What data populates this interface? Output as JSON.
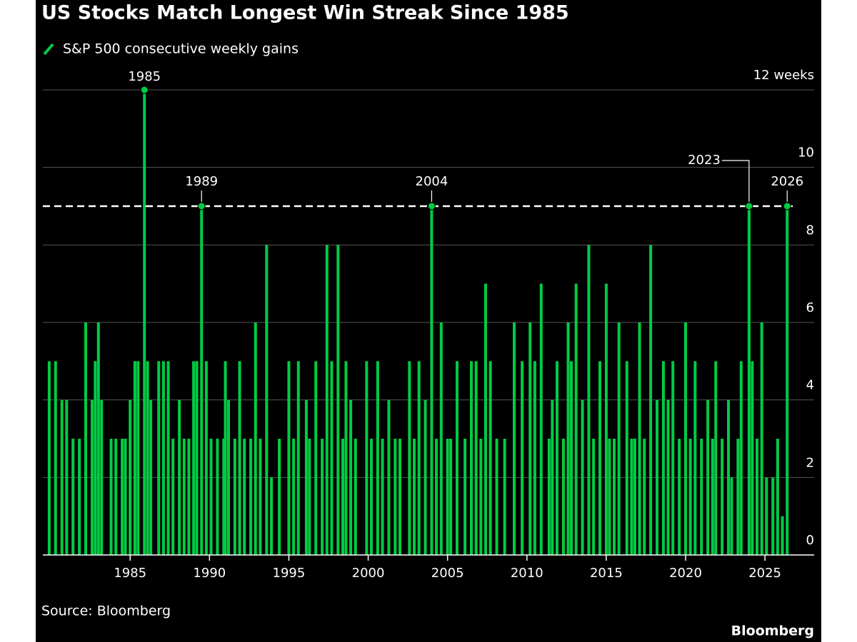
{
  "chart_data": {
    "type": "bar",
    "title": "US Stocks Match Longest Win Streak Since 1985",
    "source": "Source: Bloomberg",
    "brand": "Bloomberg",
    "series": [
      {
        "name": "S&P 500 consecutive weekly gains",
        "color": "#00cc44",
        "x": [
          1979.9,
          1980.3,
          1980.7,
          1981.0,
          1981.4,
          1981.8,
          1982.2,
          1982.6,
          1982.8,
          1983.0,
          1983.2,
          1983.8,
          1984.1,
          1984.5,
          1984.7,
          1985.0,
          1985.3,
          1985.5,
          1985.9,
          1986.1,
          1986.3,
          1986.8,
          1987.1,
          1987.4,
          1987.7,
          1988.1,
          1988.4,
          1988.7,
          1989.0,
          1989.2,
          1989.5,
          1989.8,
          1990.1,
          1990.5,
          1990.9,
          1991.0,
          1991.2,
          1991.6,
          1991.9,
          1992.2,
          1992.6,
          1992.9,
          1993.2,
          1993.6,
          1993.9,
          1994.4,
          1995.0,
          1995.3,
          1995.6,
          1996.1,
          1996.3,
          1996.7,
          1997.1,
          1997.4,
          1997.7,
          1998.1,
          1998.4,
          1998.6,
          1998.9,
          1999.2,
          1999.9,
          2000.2,
          2000.6,
          2000.9,
          2001.3,
          2001.7,
          2002.0,
          2002.6,
          2002.9,
          2003.2,
          2003.6,
          2004.0,
          2004.3,
          2004.6,
          2005.0,
          2005.2,
          2005.6,
          2006.1,
          2006.5,
          2006.8,
          2007.1,
          2007.4,
          2007.7,
          2008.1,
          2008.6,
          2009.2,
          2009.7,
          2010.2,
          2010.5,
          2010.9,
          2011.4,
          2011.6,
          2011.9,
          2012.3,
          2012.6,
          2012.8,
          2013.1,
          2013.5,
          2013.9,
          2014.2,
          2014.6,
          2015.0,
          2015.2,
          2015.5,
          2015.8,
          2016.3,
          2016.6,
          2016.8,
          2017.1,
          2017.4,
          2017.8,
          2018.2,
          2018.6,
          2018.9,
          2019.2,
          2019.6,
          2020.0,
          2020.3,
          2020.6,
          2021.0,
          2021.4,
          2021.7,
          2021.9,
          2022.3,
          2022.7,
          2022.9,
          2023.3,
          2023.5,
          2024.0,
          2024.2,
          2024.5,
          2024.8,
          2025.1,
          2025.5,
          2025.8,
          2026.1,
          2026.4
        ],
        "values": [
          5,
          5,
          4,
          4,
          3,
          3,
          6,
          4,
          5,
          6,
          4,
          3,
          3,
          3,
          3,
          4,
          5,
          5,
          12,
          5,
          4,
          5,
          5,
          5,
          3,
          4,
          3,
          3,
          5,
          5,
          9,
          5,
          3,
          3,
          3,
          5,
          4,
          3,
          5,
          3,
          3,
          6,
          3,
          8,
          2,
          3,
          5,
          3,
          5,
          4,
          3,
          5,
          3,
          8,
          5,
          8,
          3,
          5,
          4,
          3,
          5,
          3,
          5,
          3,
          4,
          3,
          3,
          5,
          3,
          5,
          4,
          9,
          3,
          6,
          3,
          3,
          5,
          3,
          5,
          5,
          3,
          7,
          5,
          3,
          3,
          6,
          5,
          6,
          5,
          7,
          3,
          4,
          5,
          3,
          6,
          5,
          7,
          4,
          8,
          3,
          5,
          7,
          3,
          3,
          6,
          5,
          3,
          3,
          6,
          3,
          8,
          4,
          5,
          4,
          5,
          3,
          6,
          3,
          5,
          3,
          4,
          3,
          5,
          3,
          4,
          2,
          3,
          5,
          9,
          5,
          3,
          6,
          2,
          2,
          3,
          1,
          9
        ]
      }
    ],
    "annotations": [
      {
        "label": "1985",
        "x": 1985.9,
        "y": 12
      },
      {
        "label": "1989",
        "x": 1989.5,
        "y": 9
      },
      {
        "label": "2004",
        "x": 2004.0,
        "y": 9
      },
      {
        "label": "2023",
        "x": 2024.0,
        "y": 9
      },
      {
        "label": "2026",
        "x": 2026.4,
        "y": 9
      }
    ],
    "reference_line": 9,
    "xlim": [
      1979.5,
      2028.1
    ],
    "xticks": [
      1985,
      1990,
      1995,
      2000,
      2005,
      2010,
      2015,
      2020,
      2025
    ],
    "ylim": [
      0,
      12
    ],
    "yticks": [
      0,
      2,
      4,
      6,
      8,
      10,
      {
        "value": 12,
        "label": "12 weeks"
      }
    ],
    "grid": true
  }
}
